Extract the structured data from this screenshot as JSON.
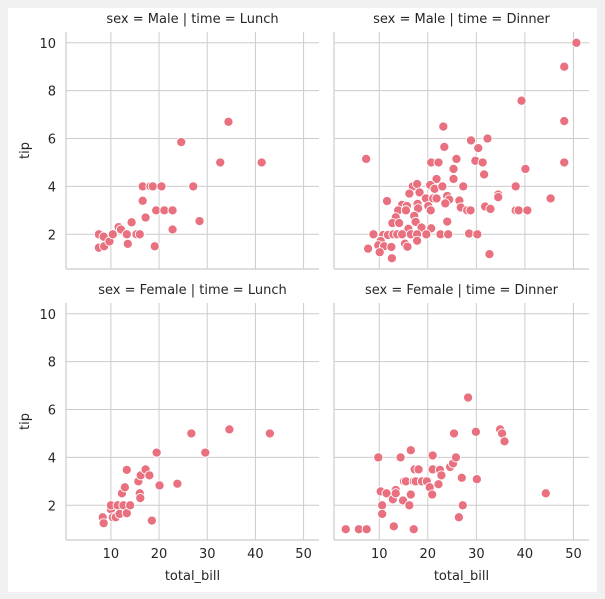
{
  "chart_data": {
    "type": "scatter",
    "figure": "facet-grid",
    "marker_color": "#e8707f",
    "marker_edge": "#ffffff",
    "grid_color": "#cccccc",
    "xlabel": "total_bill",
    "ylabel": "tip",
    "xlim": [
      0.68,
      53.2
    ],
    "ylim": [
      0.55,
      10.45
    ],
    "xticks": [
      10,
      20,
      30,
      40,
      50
    ],
    "yticks": [
      2,
      4,
      6,
      8,
      10
    ],
    "grid": true,
    "panels": [
      {
        "title": "sex = Male | time = Lunch",
        "row": 0,
        "col": 0,
        "points": [
          [
            7.5,
            2.0
          ],
          [
            7.5,
            1.44
          ],
          [
            8.5,
            1.9
          ],
          [
            8.6,
            1.5
          ],
          [
            9.7,
            1.7
          ],
          [
            10.4,
            2.0
          ],
          [
            11.6,
            2.3
          ],
          [
            12.1,
            2.2
          ],
          [
            13.3,
            2.0
          ],
          [
            13.5,
            1.6
          ],
          [
            14.3,
            2.5
          ],
          [
            15.3,
            2.0
          ],
          [
            16.0,
            2.0
          ],
          [
            16.6,
            3.4
          ],
          [
            16.6,
            4.0
          ],
          [
            17.2,
            2.7
          ],
          [
            18.2,
            4.0
          ],
          [
            18.7,
            4.0
          ],
          [
            19.1,
            1.5
          ],
          [
            19.4,
            3.0
          ],
          [
            20.5,
            4.0
          ],
          [
            21.1,
            3.0
          ],
          [
            22.8,
            3.0
          ],
          [
            22.8,
            2.2
          ],
          [
            24.6,
            5.85
          ],
          [
            27.1,
            4.0
          ],
          [
            28.4,
            2.55
          ],
          [
            32.7,
            5.0
          ],
          [
            34.4,
            6.7
          ],
          [
            41.3,
            5.0
          ]
        ]
      },
      {
        "title": "sex = Male | time = Dinner",
        "row": 0,
        "col": 1,
        "points": [
          [
            50.6,
            10.0
          ],
          [
            48.1,
            9.0
          ],
          [
            39.3,
            7.58
          ],
          [
            48.1,
            6.73
          ],
          [
            48.1,
            5.0
          ],
          [
            23.2,
            6.5
          ],
          [
            23.4,
            5.65
          ],
          [
            28.9,
            5.92
          ],
          [
            32.3,
            6.0
          ],
          [
            30.4,
            5.6
          ],
          [
            7.3,
            5.15
          ],
          [
            25.9,
            5.15
          ],
          [
            29.8,
            5.07
          ],
          [
            31.3,
            5.0
          ],
          [
            20.7,
            5.0
          ],
          [
            22.2,
            5.0
          ],
          [
            40.1,
            4.73
          ],
          [
            25.3,
            4.73
          ],
          [
            31.6,
            4.5
          ],
          [
            21.8,
            4.31
          ],
          [
            25.3,
            4.31
          ],
          [
            16.9,
            4.0
          ],
          [
            17.8,
            4.1
          ],
          [
            20.5,
            4.06
          ],
          [
            21.4,
            3.9
          ],
          [
            23.0,
            4.0
          ],
          [
            27.3,
            4.0
          ],
          [
            38.1,
            4.0
          ],
          [
            34.5,
            3.66
          ],
          [
            34.5,
            3.55
          ],
          [
            45.3,
            3.5
          ],
          [
            16.2,
            3.7
          ],
          [
            18.3,
            3.75
          ],
          [
            19.6,
            3.5
          ],
          [
            21.1,
            3.5
          ],
          [
            21.8,
            3.5
          ],
          [
            24.0,
            3.6
          ],
          [
            24.4,
            3.45
          ],
          [
            23.6,
            3.29
          ],
          [
            26.5,
            3.41
          ],
          [
            11.6,
            3.39
          ],
          [
            14.7,
            3.23
          ],
          [
            15.7,
            3.18
          ],
          [
            17.9,
            3.27
          ],
          [
            20.1,
            3.18
          ],
          [
            13.9,
            3.0
          ],
          [
            15.5,
            3.0
          ],
          [
            18.0,
            3.08
          ],
          [
            20.6,
            3.0
          ],
          [
            26.8,
            3.12
          ],
          [
            28.1,
            3.0
          ],
          [
            28.8,
            3.0
          ],
          [
            31.8,
            3.16
          ],
          [
            32.9,
            3.06
          ],
          [
            38.1,
            3.0
          ],
          [
            38.7,
            3.0
          ],
          [
            40.5,
            3.0
          ],
          [
            13.4,
            2.71
          ],
          [
            12.7,
            2.47
          ],
          [
            14.1,
            2.47
          ],
          [
            17.2,
            2.77
          ],
          [
            17.5,
            2.52
          ],
          [
            18.7,
            2.28
          ],
          [
            24.0,
            2.53
          ],
          [
            16.0,
            2.23
          ],
          [
            20.7,
            2.25
          ],
          [
            8.8,
            2.0
          ],
          [
            10.8,
            1.97
          ],
          [
            11.8,
            1.97
          ],
          [
            12.9,
            2.0
          ],
          [
            13.7,
            2.0
          ],
          [
            14.7,
            2.0
          ],
          [
            16.5,
            2.0
          ],
          [
            17.8,
            2.0
          ],
          [
            19.7,
            2.0
          ],
          [
            22.6,
            2.0
          ],
          [
            24.2,
            2.0
          ],
          [
            28.5,
            2.03
          ],
          [
            30.2,
            2.0
          ],
          [
            10.3,
            1.72
          ],
          [
            9.8,
            1.54
          ],
          [
            11.0,
            1.5
          ],
          [
            12.5,
            1.47
          ],
          [
            15.3,
            1.61
          ],
          [
            15.8,
            1.48
          ],
          [
            17.8,
            1.73
          ],
          [
            7.7,
            1.4
          ],
          [
            10.1,
            1.25
          ],
          [
            12.6,
            1.0
          ],
          [
            32.7,
            1.17
          ]
        ]
      },
      {
        "title": "sex = Female | time = Lunch",
        "row": 1,
        "col": 0,
        "points": [
          [
            8.3,
            1.5
          ],
          [
            8.5,
            1.25
          ],
          [
            10.0,
            1.83
          ],
          [
            10.0,
            2.0
          ],
          [
            10.4,
            1.5
          ],
          [
            11.0,
            1.5
          ],
          [
            11.4,
            2.0
          ],
          [
            11.8,
            1.64
          ],
          [
            12.3,
            2.5
          ],
          [
            12.6,
            2.0
          ],
          [
            12.9,
            2.75
          ],
          [
            13.3,
            3.48
          ],
          [
            13.3,
            1.67
          ],
          [
            14.0,
            2.0
          ],
          [
            15.7,
            3.0
          ],
          [
            16.0,
            2.5
          ],
          [
            16.1,
            2.3
          ],
          [
            16.2,
            3.25
          ],
          [
            17.2,
            3.5
          ],
          [
            18.0,
            3.25
          ],
          [
            18.5,
            1.36
          ],
          [
            19.5,
            4.2
          ],
          [
            20.1,
            2.83
          ],
          [
            23.8,
            2.9
          ],
          [
            26.7,
            5.0
          ],
          [
            29.6,
            4.2
          ],
          [
            34.6,
            5.17
          ],
          [
            43.0,
            5.0
          ]
        ]
      },
      {
        "title": "sex = Female | time = Dinner",
        "row": 1,
        "col": 1,
        "points": [
          [
            3.1,
            1.0
          ],
          [
            5.8,
            1.0
          ],
          [
            7.4,
            1.0
          ],
          [
            9.8,
            4.0
          ],
          [
            10.3,
            2.58
          ],
          [
            10.6,
            2.0
          ],
          [
            10.6,
            1.64
          ],
          [
            11.5,
            2.5
          ],
          [
            12.8,
            2.25
          ],
          [
            13.0,
            1.12
          ],
          [
            13.4,
            2.64
          ],
          [
            13.4,
            2.5
          ],
          [
            14.4,
            4.0
          ],
          [
            14.9,
            2.2
          ],
          [
            15.1,
            3.0
          ],
          [
            15.5,
            3.0
          ],
          [
            16.2,
            2.0
          ],
          [
            16.5,
            4.3
          ],
          [
            16.5,
            2.45
          ],
          [
            17.1,
            3.0
          ],
          [
            17.1,
            1.0
          ],
          [
            17.3,
            3.5
          ],
          [
            18.1,
            3.5
          ],
          [
            17.5,
            3.0
          ],
          [
            18.8,
            3.0
          ],
          [
            19.8,
            3.0
          ],
          [
            20.4,
            2.75
          ],
          [
            20.9,
            2.45
          ],
          [
            21.0,
            3.5
          ],
          [
            21.0,
            4.08
          ],
          [
            22.2,
            2.88
          ],
          [
            22.5,
            3.48
          ],
          [
            22.8,
            3.25
          ],
          [
            24.6,
            3.6
          ],
          [
            25.2,
            3.75
          ],
          [
            25.4,
            5.0
          ],
          [
            25.8,
            4.0
          ],
          [
            26.4,
            1.5
          ],
          [
            27.0,
            3.15
          ],
          [
            27.2,
            2.0
          ],
          [
            28.3,
            6.5
          ],
          [
            29.9,
            5.07
          ],
          [
            30.1,
            3.09
          ],
          [
            34.9,
            5.17
          ],
          [
            35.3,
            5.0
          ],
          [
            35.8,
            4.67
          ],
          [
            44.3,
            2.5
          ]
        ]
      }
    ]
  }
}
